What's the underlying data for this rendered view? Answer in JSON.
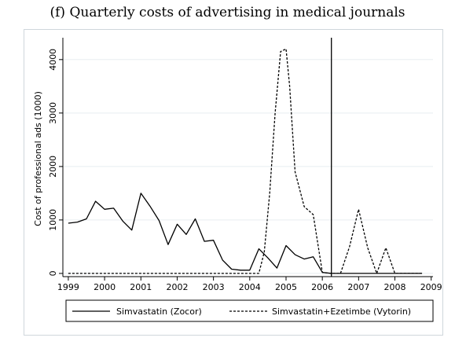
{
  "chart_data": {
    "type": "line",
    "title": "(f) Quarterly costs of advertising in medical journals",
    "xlabel": "",
    "ylabel": "Cost of professional ads (1000)",
    "xlim": [
      1998.85,
      2009.05
    ],
    "ylim": [
      -60,
      4350
    ],
    "x_ticks": [
      "1999",
      "2000",
      "2001",
      "2002",
      "2003",
      "2004",
      "2005",
      "2006",
      "2007",
      "2008",
      "2009"
    ],
    "y_ticks": [
      "0",
      "1000",
      "2000",
      "3000",
      "4000"
    ],
    "vertical_line_x": 2006.25,
    "legend_placement": "bottom",
    "series": [
      {
        "name": "Simvastatin (Zocor)",
        "style": "solid",
        "color": "#000000",
        "points": [
          [
            1999.0,
            940
          ],
          [
            1999.25,
            960
          ],
          [
            1999.5,
            1020
          ],
          [
            1999.75,
            1350
          ],
          [
            2000.0,
            1200
          ],
          [
            2000.25,
            1220
          ],
          [
            2000.5,
            980
          ],
          [
            2000.75,
            810
          ],
          [
            2001.0,
            1500
          ],
          [
            2001.25,
            1260
          ],
          [
            2001.5,
            990
          ],
          [
            2001.75,
            540
          ],
          [
            2002.0,
            920
          ],
          [
            2002.25,
            730
          ],
          [
            2002.5,
            1020
          ],
          [
            2002.75,
            600
          ],
          [
            2003.0,
            620
          ],
          [
            2003.25,
            250
          ],
          [
            2003.5,
            80
          ],
          [
            2003.75,
            60
          ],
          [
            2004.0,
            60
          ],
          [
            2004.25,
            460
          ],
          [
            2004.5,
            290
          ],
          [
            2004.75,
            100
          ],
          [
            2005.0,
            520
          ],
          [
            2005.25,
            350
          ],
          [
            2005.5,
            270
          ],
          [
            2005.75,
            310
          ],
          [
            2006.0,
            20
          ],
          [
            2006.25,
            0
          ],
          [
            2006.5,
            0
          ],
          [
            2006.75,
            0
          ],
          [
            2007.0,
            0
          ],
          [
            2007.25,
            0
          ],
          [
            2007.5,
            0
          ],
          [
            2007.75,
            0
          ],
          [
            2008.0,
            0
          ],
          [
            2008.25,
            0
          ],
          [
            2008.5,
            0
          ],
          [
            2008.75,
            0
          ]
        ]
      },
      {
        "name": "Simvastatin+Ezetimbe (Vytorin)",
        "style": "dashed",
        "color": "#000000",
        "points": [
          [
            1999.0,
            0
          ],
          [
            1999.5,
            0
          ],
          [
            2000.0,
            0
          ],
          [
            2000.5,
            0
          ],
          [
            2001.0,
            0
          ],
          [
            2001.5,
            0
          ],
          [
            2002.0,
            0
          ],
          [
            2002.5,
            0
          ],
          [
            2003.0,
            0
          ],
          [
            2003.5,
            0
          ],
          [
            2004.0,
            0
          ],
          [
            2004.25,
            0
          ],
          [
            2004.4,
            400
          ],
          [
            2004.55,
            1500
          ],
          [
            2004.7,
            3000
          ],
          [
            2004.85,
            4150
          ],
          [
            2005.0,
            4200
          ],
          [
            2005.1,
            3500
          ],
          [
            2005.25,
            1900
          ],
          [
            2005.5,
            1250
          ],
          [
            2005.75,
            1100
          ],
          [
            2006.0,
            20
          ],
          [
            2006.25,
            0
          ],
          [
            2006.5,
            0
          ],
          [
            2006.75,
            500
          ],
          [
            2007.0,
            1200
          ],
          [
            2007.25,
            480
          ],
          [
            2007.5,
            0
          ],
          [
            2007.75,
            480
          ],
          [
            2008.0,
            0
          ],
          [
            2008.25,
            0
          ],
          [
            2008.5,
            0
          ],
          [
            2008.75,
            0
          ]
        ]
      }
    ]
  }
}
